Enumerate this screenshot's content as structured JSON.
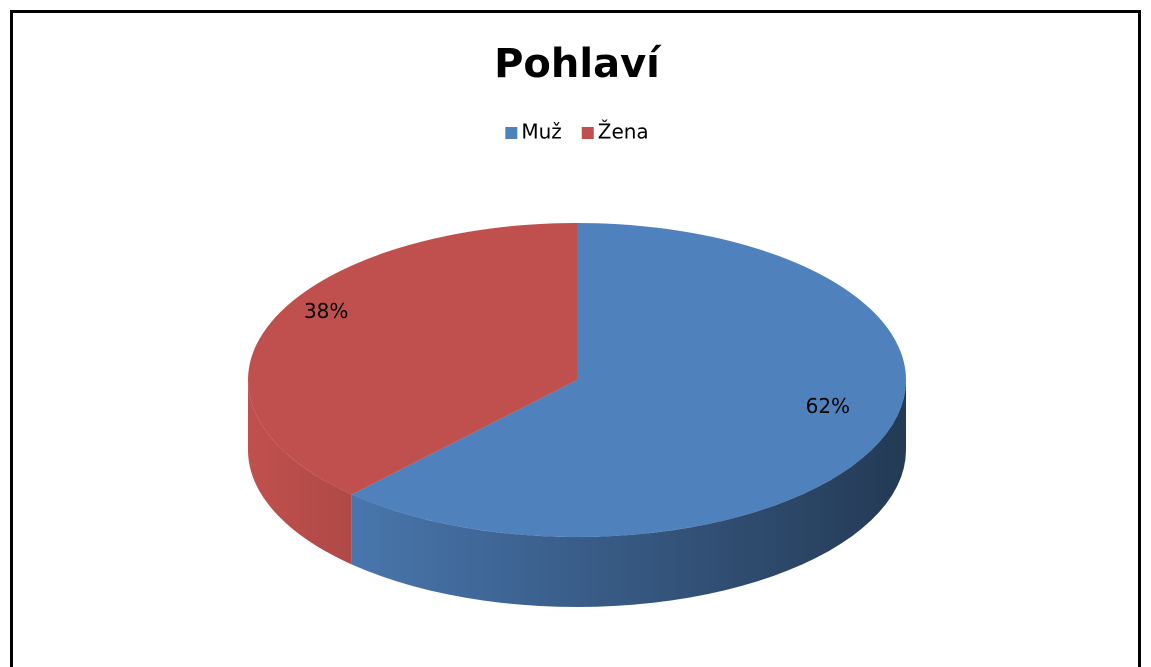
{
  "chart_data": {
    "type": "pie",
    "title": "Pohlaví",
    "categories": [
      "Muž",
      "Žena"
    ],
    "values": [
      62,
      38
    ],
    "value_labels": [
      "62%",
      "38%"
    ],
    "colors": [
      "#4f81bd",
      "#c0504d"
    ],
    "legend": "top"
  }
}
